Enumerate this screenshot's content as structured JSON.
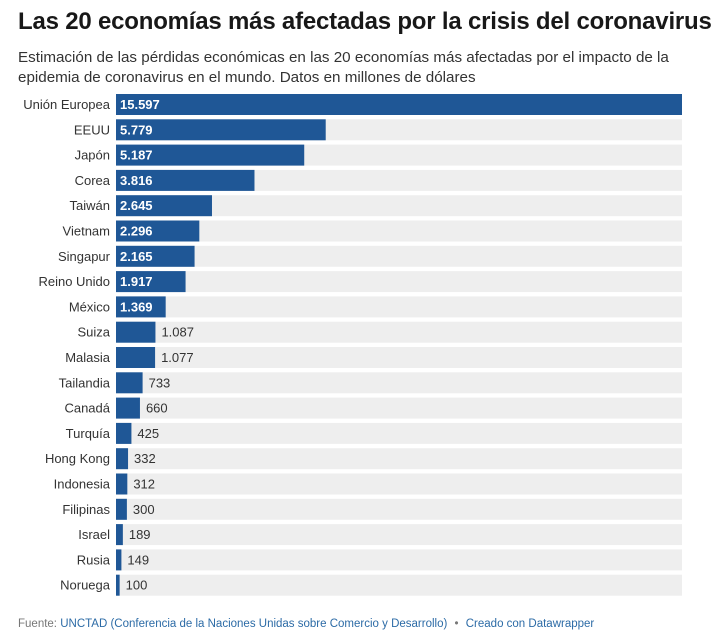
{
  "header": {
    "title": "Las 20 economías más afectadas por la crisis del coronavirus",
    "subtitle": "Estimación de las pérdidas económicas en las 20 economías más afectadas por el impacto de la epidemia de coronavirus en el mundo. Datos en millones de dólares"
  },
  "footer": {
    "source_label": "Fuente:",
    "source_text": "UNCTAD (Conferencia de la Naciones Unidas sobre Comercio y Desarrollo)",
    "separator": "•",
    "credit": "Creado con Datawrapper"
  },
  "colors": {
    "bar": "#1f5796",
    "track": "#eeeeee",
    "label_inside": "#ffffff",
    "label_outside": "#333333"
  },
  "chart_data": {
    "type": "bar",
    "orientation": "horizontal",
    "categories": [
      "Unión Europea",
      "EEUU",
      "Japón",
      "Corea",
      "Taiwán",
      "Vietnam",
      "Singapur",
      "Reino Unido",
      "México",
      "Suiza",
      "Malasia",
      "Tailandia",
      "Canadá",
      "Turquía",
      "Hong Kong",
      "Indonesia",
      "Filipinas",
      "Israel",
      "Rusia",
      "Noruega"
    ],
    "values": [
      15597,
      5779,
      5187,
      3816,
      2645,
      2296,
      2165,
      1917,
      1369,
      1087,
      1077,
      733,
      660,
      425,
      332,
      312,
      300,
      189,
      149,
      100
    ],
    "value_labels": [
      "15.597",
      "5.779",
      "5.187",
      "3.816",
      "2.645",
      "2.296",
      "2.165",
      "1.917",
      "1.369",
      "1.087",
      "1.077",
      "733",
      "660",
      "425",
      "332",
      "312",
      "300",
      "189",
      "149",
      "100"
    ],
    "xlim": [
      0,
      15597
    ],
    "title": "Las 20 economías más afectadas por la crisis del coronavirus",
    "xlabel": "",
    "ylabel": ""
  }
}
